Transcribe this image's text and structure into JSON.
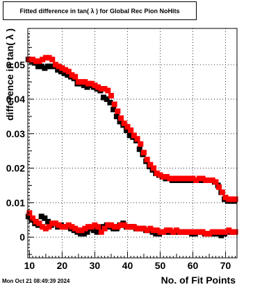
{
  "chart_data": {
    "type": "scatter",
    "title": "Fitted difference in tan( λ ) for Global Rec Pion NoHits",
    "xlabel": "No. of Fit Points",
    "ylabel": "difference in tan( λ )",
    "xlim": [
      9.5,
      73.5
    ],
    "ylim": [
      -0.006,
      0.0605
    ],
    "x_ticks": [
      10,
      20,
      30,
      40,
      50,
      60,
      70
    ],
    "y_ticks": [
      0,
      0.01,
      0.02,
      0.03,
      0.04,
      0.05
    ],
    "y_tick_labels": [
      "0",
      "0.01",
      "0.02",
      "0.03",
      "0.04",
      "0.05"
    ],
    "grid": true,
    "legend": "none",
    "series": [
      {
        "color": "#000000",
        "x": [
          10,
          11,
          12,
          13,
          14,
          15,
          16,
          17,
          18,
          19,
          20,
          21,
          22,
          23,
          24,
          25,
          26,
          27,
          28,
          29,
          30,
          31,
          32,
          33,
          34,
          35,
          36,
          37,
          38,
          39,
          40,
          41,
          42,
          43,
          44,
          45,
          46,
          47,
          48,
          49,
          50,
          51,
          52,
          53,
          54,
          55,
          56,
          57,
          58,
          59,
          60,
          61,
          62,
          63,
          64,
          65,
          66,
          67,
          68,
          69,
          70,
          71,
          72,
          73
        ],
        "y": [
          0.0515,
          0.051,
          0.0505,
          0.0495,
          0.0495,
          0.049,
          0.0495,
          0.0495,
          0.0495,
          0.0485,
          0.048,
          0.0475,
          0.047,
          0.0465,
          0.046,
          0.0445,
          0.0445,
          0.044,
          0.0435,
          0.044,
          0.0435,
          0.043,
          0.0425,
          0.0405,
          0.04,
          0.039,
          0.037,
          0.035,
          0.0335,
          0.0325,
          0.031,
          0.0295,
          0.029,
          0.028,
          0.0255,
          0.024,
          0.022,
          0.0205,
          0.0195,
          0.0185,
          0.018,
          0.0175,
          0.017,
          0.017,
          0.0165,
          0.0165,
          0.0165,
          0.0165,
          0.0165,
          0.0165,
          0.0165,
          0.0165,
          0.0165,
          0.0165,
          0.0165,
          0.0165,
          0.0165,
          0.016,
          0.015,
          0.013,
          0.011,
          0.0105,
          0.0105,
          0.0105
        ]
      },
      {
        "color": "#ff0000",
        "x": [
          10,
          11,
          12,
          13,
          14,
          15,
          16,
          17,
          18,
          19,
          20,
          21,
          22,
          23,
          24,
          25,
          26,
          27,
          28,
          29,
          30,
          31,
          32,
          33,
          34,
          35,
          36,
          37,
          38,
          39,
          40,
          41,
          42,
          43,
          44,
          45,
          46,
          47,
          48,
          49,
          50,
          51,
          52,
          53,
          54,
          55,
          56,
          57,
          58,
          59,
          60,
          61,
          62,
          63,
          64,
          65,
          66,
          67,
          68,
          69,
          70,
          71,
          72,
          73
        ],
        "y": [
          0.0515,
          0.0515,
          0.051,
          0.051,
          0.0515,
          0.052,
          0.052,
          0.0515,
          0.05,
          0.0495,
          0.049,
          0.0485,
          0.048,
          0.047,
          0.0465,
          0.045,
          0.045,
          0.045,
          0.0445,
          0.0445,
          0.044,
          0.0435,
          0.043,
          0.043,
          0.0425,
          0.041,
          0.0385,
          0.0365,
          0.0345,
          0.033,
          0.032,
          0.031,
          0.0295,
          0.0285,
          0.027,
          0.0245,
          0.0225,
          0.021,
          0.02,
          0.0185,
          0.018,
          0.0175,
          0.0175,
          0.017,
          0.017,
          0.017,
          0.017,
          0.017,
          0.017,
          0.017,
          0.017,
          0.0165,
          0.017,
          0.017,
          0.0165,
          0.0165,
          0.0165,
          0.016,
          0.0145,
          0.013,
          0.0115,
          0.011,
          0.011,
          0.011
        ]
      },
      {
        "color": "#000000",
        "x": [
          10,
          11,
          12,
          13,
          14,
          15,
          16,
          17,
          18,
          19,
          20,
          21,
          22,
          23,
          24,
          25,
          26,
          27,
          28,
          29,
          30,
          31,
          32,
          33,
          34,
          35,
          36,
          37,
          38,
          39,
          40,
          41,
          42,
          43,
          44,
          45,
          46,
          47,
          48,
          49,
          50,
          51,
          52,
          53,
          54,
          55,
          56,
          57,
          58,
          59,
          60,
          61,
          62,
          63,
          64,
          65,
          66,
          67,
          68,
          69,
          70,
          71,
          72,
          73
        ],
        "y": [
          0.006,
          0.005,
          0.004,
          0.0035,
          0.006,
          0.0055,
          0.0045,
          0.0035,
          0.004,
          0.003,
          0.0035,
          0.003,
          0.003,
          0.0025,
          0.002,
          0.0015,
          0.001,
          0.001,
          0.0015,
          0.0025,
          0.002,
          0.0015,
          0.0025,
          0.003,
          0.0035,
          0.003,
          0.0025,
          0.0025,
          0.0035,
          0.004,
          0.003,
          0.003,
          0.003,
          0.0025,
          0.0025,
          0.0025,
          0.002,
          0.002,
          0.0015,
          0.001,
          0.001,
          0.0015,
          0.0015,
          0.0015,
          0.0015,
          0.0015,
          0.0015,
          0.0015,
          0.0015,
          0.0015,
          0.001,
          0.001,
          0.0015,
          0.0015,
          0.001,
          0.001,
          0.001,
          0.001,
          0.001,
          0.0005,
          0.001,
          0.0015,
          0.0015,
          0.0015
        ]
      },
      {
        "color": "#ff0000",
        "x": [
          10,
          11,
          12,
          13,
          14,
          15,
          16,
          17,
          18,
          19,
          20,
          21,
          22,
          23,
          24,
          25,
          26,
          27,
          28,
          29,
          30,
          31,
          32,
          33,
          34,
          35,
          36,
          37,
          38,
          39,
          40,
          41,
          42,
          43,
          44,
          45,
          46,
          47,
          48,
          49,
          50,
          51,
          52,
          53,
          54,
          55,
          56,
          57,
          58,
          59,
          60,
          61,
          62,
          63,
          64,
          65,
          66,
          67,
          68,
          69,
          70,
          71,
          72,
          73
        ],
        "y": [
          0.007,
          0.0055,
          0.0045,
          0.004,
          0.003,
          0.0025,
          0.003,
          0.004,
          0.004,
          0.0035,
          0.003,
          0.003,
          0.0035,
          0.003,
          0.0025,
          0.002,
          0.002,
          0.0025,
          0.003,
          0.003,
          0.0035,
          0.003,
          0.0015,
          0.0025,
          0.0035,
          0.0035,
          0.003,
          0.003,
          0.0035,
          0.0035,
          0.003,
          0.003,
          0.003,
          0.0025,
          0.0025,
          0.0025,
          0.002,
          0.0025,
          0.002,
          0.002,
          0.0015,
          0.0015,
          0.002,
          0.002,
          0.0015,
          0.002,
          0.0015,
          0.0015,
          0.0015,
          0.0015,
          0.0015,
          0.0015,
          0.0015,
          0.0015,
          0.001,
          0.001,
          0.0015,
          0.0015,
          0.0015,
          0.0015,
          0.0015,
          0.002,
          0.0015,
          0.0015
        ]
      }
    ]
  },
  "footer_date": "Mon Oct 21 08:49:39 2024"
}
